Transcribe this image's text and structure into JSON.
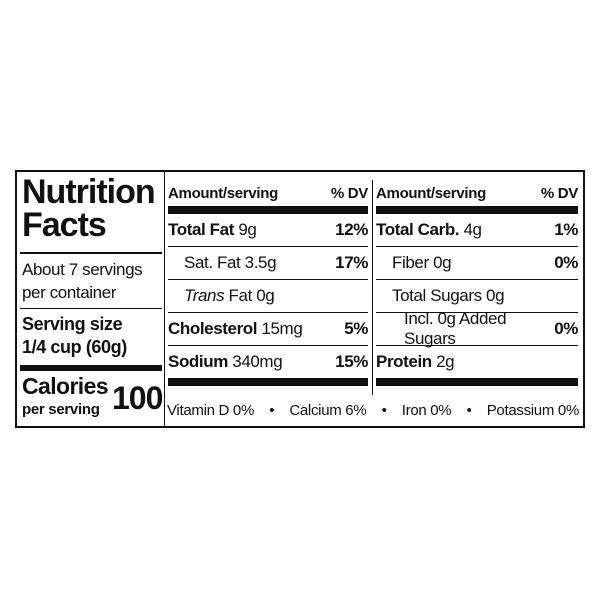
{
  "label": {
    "title": "Nutrition Facts",
    "servings": "About 7 servings per container",
    "serving_size_label": "Serving size",
    "serving_size": "1/4 cup (60g)",
    "calories_label": "Calories",
    "calories_sub": "per serving",
    "calories": "100",
    "left": {
      "header_amount": "Amount/serving",
      "header_dv": "% DV",
      "rows": [
        {
          "name": "Total Fat",
          "amount": "9g",
          "dv": "12%"
        },
        {
          "name": "Sat. Fat",
          "amount": "3.5g",
          "dv": "17%"
        },
        {
          "name_italic": "Trans",
          "name": "Fat",
          "amount": "0g"
        },
        {
          "name": "Cholesterol",
          "amount": "15mg",
          "dv": "5%"
        },
        {
          "name": "Sodium",
          "amount": "340mg",
          "dv": "15%"
        }
      ]
    },
    "right": {
      "header_amount": "Amount/serving",
      "header_dv": "% DV",
      "rows": [
        {
          "name": "Total Carb.",
          "amount": "4g",
          "dv": "1%"
        },
        {
          "name": "Fiber",
          "amount": "0g",
          "dv": "0%"
        },
        {
          "name": "Total Sugars",
          "amount": "0g"
        },
        {
          "name": "Incl. 0g Added Sugars",
          "dv": "0%"
        },
        {
          "name": "Protein",
          "amount": "2g"
        }
      ]
    },
    "footer": [
      "Vitamin D 0%",
      "Calcium 6%",
      "Iron 0%",
      "Potassium 0%"
    ]
  }
}
